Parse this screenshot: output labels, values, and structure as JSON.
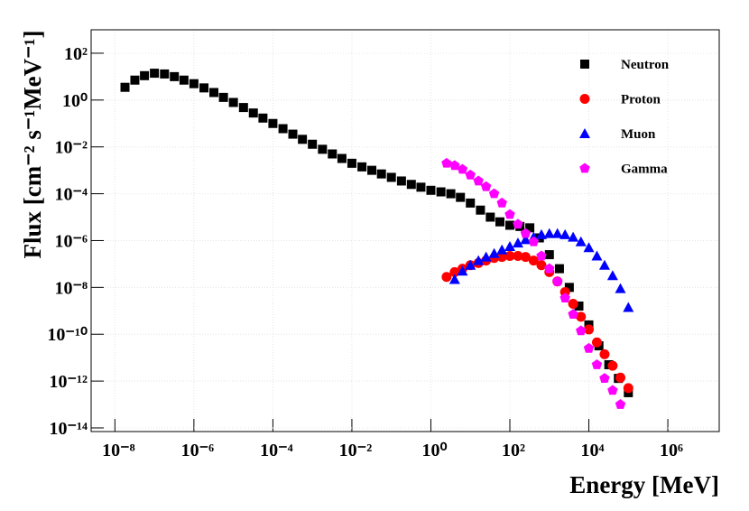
{
  "chart_data": {
    "type": "scatter",
    "x_label": "Energy [MeV]",
    "y_label": "Flux [cm⁻² s⁻¹MeV⁻¹]",
    "xlog": true,
    "ylog": true,
    "grid": true,
    "legend_position": "upper-right",
    "xlim": [
      2.5e-09,
      20000000.0
    ],
    "ylim": [
      7e-15,
      1000
    ],
    "xticks": [
      {
        "value": 1e-08,
        "label": "10⁻⁸"
      },
      {
        "value": 1e-06,
        "label": "10⁻⁶"
      },
      {
        "value": 0.0001,
        "label": "10⁻⁴"
      },
      {
        "value": 0.01,
        "label": "10⁻²"
      },
      {
        "value": 1,
        "label": "10⁰"
      },
      {
        "value": 100,
        "label": "10²"
      },
      {
        "value": 10000,
        "label": "10⁴"
      },
      {
        "value": 1000000,
        "label": "10⁶"
      }
    ],
    "yticks": [
      {
        "value": 1e-14,
        "label": "10⁻¹⁴"
      },
      {
        "value": 1e-12,
        "label": "10⁻¹²"
      },
      {
        "value": 1e-10,
        "label": "10⁻¹⁰"
      },
      {
        "value": 1e-08,
        "label": "10⁻⁸"
      },
      {
        "value": 1e-06,
        "label": "10⁻⁶"
      },
      {
        "value": 0.0001,
        "label": "10⁻⁴"
      },
      {
        "value": 0.01,
        "label": "10⁻²"
      },
      {
        "value": 1,
        "label": "10⁰"
      },
      {
        "value": 100,
        "label": "10²"
      }
    ],
    "series": [
      {
        "name": "Neutron",
        "color": "#000000",
        "marker": "square",
        "x": [
          1.8e-08,
          3.2e-08,
          5.6e-08,
          1e-07,
          1.8e-07,
          3.2e-07,
          5.6e-07,
          1e-06,
          1.8e-06,
          3.2e-06,
          5.6e-06,
          1e-05,
          1.8e-05,
          3.2e-05,
          5.6e-05,
          0.0001,
          0.00018,
          0.00032,
          0.00056,
          0.001,
          0.0018,
          0.0032,
          0.0056,
          0.01,
          0.018,
          0.032,
          0.056,
          0.1,
          0.18,
          0.32,
          0.56,
          1,
          1.8,
          3.2,
          5.6,
          10,
          18,
          32,
          56,
          100,
          180,
          320,
          560,
          1000,
          1800,
          3200,
          5600,
          10000,
          18000,
          32000,
          56000,
          100000
        ],
        "values": [
          3.5,
          7.1,
          11,
          14,
          13,
          10,
          7.1,
          5,
          3.3,
          2.1,
          1.3,
          0.79,
          0.48,
          0.28,
          0.17,
          0.1,
          0.06,
          0.035,
          0.021,
          0.013,
          0.0079,
          0.005,
          0.0032,
          0.002,
          0.0014,
          0.001,
          0.0007,
          0.0005,
          0.00035,
          0.00025,
          0.00019,
          0.00014,
          0.00012,
          0.0001,
          7e-05,
          4e-05,
          2e-05,
          1e-05,
          6.3e-06,
          4.5e-06,
          4e-06,
          3.5e-06,
          1.3e-06,
          2.5e-07,
          6.3e-08,
          1e-08,
          1.6e-09,
          2.5e-10,
          3.2e-11,
          5e-12,
          1.3e-12,
          3.2e-13
        ]
      },
      {
        "name": "Proton",
        "color": "#ff0000",
        "marker": "circle",
        "x": [
          2.5,
          4,
          6.3,
          10,
          16,
          25,
          40,
          63,
          100,
          160,
          250,
          400,
          630,
          1000,
          1600,
          2500,
          4000,
          6300,
          10000,
          16000,
          25000,
          40000,
          63000,
          100000
        ],
        "values": [
          2.8e-08,
          4.5e-08,
          6.3e-08,
          8.9e-08,
          1.1e-07,
          1.4e-07,
          1.8e-07,
          2e-07,
          2.2e-07,
          2.2e-07,
          2e-07,
          1.4e-07,
          8.9e-08,
          4.5e-08,
          1.8e-08,
          6.3e-09,
          2e-09,
          5.6e-10,
          1.6e-10,
          4.5e-11,
          1.4e-11,
          4.5e-12,
          1.4e-12,
          5e-13
        ]
      },
      {
        "name": "Muon",
        "color": "#0000ff",
        "marker": "triangle",
        "x": [
          4,
          6.3,
          10,
          16,
          25,
          40,
          63,
          100,
          160,
          250,
          400,
          630,
          1000,
          1600,
          2500,
          4000,
          6300,
          10000,
          16000,
          25000,
          40000,
          63000,
          100000
        ],
        "values": [
          2.2e-08,
          5e-08,
          8.9e-08,
          1.4e-07,
          2e-07,
          2.8e-07,
          4e-07,
          5.6e-07,
          7.9e-07,
          1.1e-06,
          1.4e-06,
          1.8e-06,
          2e-06,
          2e-06,
          1.8e-06,
          1.4e-06,
          8.9e-07,
          5e-07,
          2.2e-07,
          8.9e-08,
          3.2e-08,
          8.9e-09,
          1.4e-09
        ]
      },
      {
        "name": "Gamma",
        "color": "#ff00ff",
        "marker": "pentagon",
        "x": [
          2.5,
          4,
          6.3,
          10,
          16,
          25,
          40,
          63,
          100,
          160,
          250,
          400,
          630,
          1000,
          1600,
          2500,
          4000,
          6300,
          10000,
          16000,
          25000,
          40000,
          63000
        ],
        "values": [
          0.002,
          0.0016,
          0.0011,
          0.00063,
          0.00035,
          0.0002,
          0.0001,
          4e-05,
          1.3e-05,
          5e-06,
          2e-06,
          8.9e-07,
          2.2e-07,
          6.3e-08,
          1.8e-08,
          3.5e-09,
          7.1e-10,
          1.4e-10,
          2.5e-11,
          5e-12,
          1.3e-12,
          4e-13,
          1e-13
        ]
      }
    ]
  }
}
